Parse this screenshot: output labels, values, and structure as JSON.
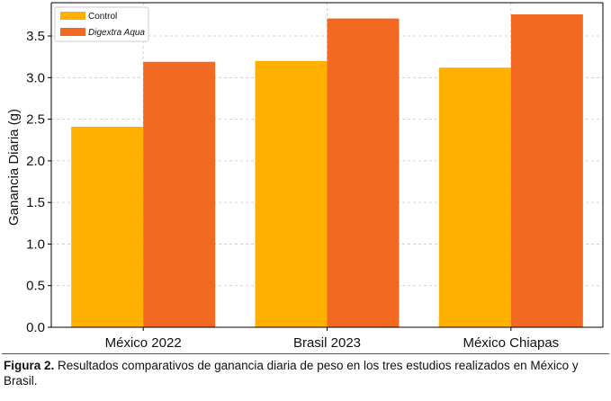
{
  "chart_data": {
    "type": "bar",
    "categories": [
      "México 2022",
      "Brasil 2023",
      "México Chiapas"
    ],
    "series": [
      {
        "name": "Control",
        "values": [
          2.41,
          3.2,
          3.12
        ],
        "color": "#FFB000"
      },
      {
        "name": "Digextra Aqua",
        "values": [
          3.19,
          3.71,
          3.76
        ],
        "color": "#F26A22"
      }
    ],
    "title": "",
    "xlabel": "",
    "ylabel": "Ganancia Diaria (g)",
    "ylim": [
      0,
      3.9
    ],
    "yticks": [
      "0.0",
      "0.5",
      "1.0",
      "1.5",
      "2.0",
      "2.5",
      "3.0",
      "3.5"
    ],
    "grid": true,
    "legend_position": "top-left"
  },
  "caption": {
    "label": "Figura 2.",
    "text": " Resultados comparativos de ganancia diaria de peso en los tres estudios realizados en México y Brasil."
  }
}
